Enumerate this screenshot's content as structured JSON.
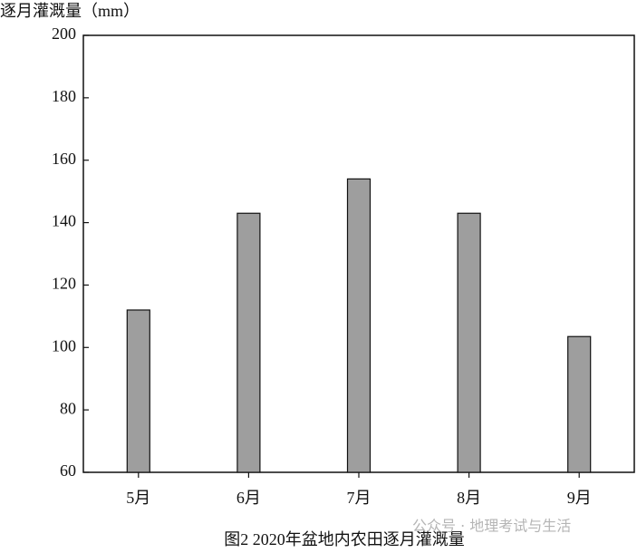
{
  "chart_data": {
    "type": "bar",
    "title": "逐月灌溉量（mm）",
    "caption": "图2 2020年盆地内农田逐月灌溉量",
    "watermark": "公众号 · 地理考试与生活",
    "categories": [
      "5月",
      "6月",
      "7月",
      "8月",
      "9月"
    ],
    "values": [
      112,
      143,
      154,
      143,
      103.5
    ],
    "color": "#9e9e9e",
    "ylim": [
      60,
      200
    ],
    "yticks": [
      60,
      80,
      100,
      120,
      140,
      160,
      180,
      200
    ],
    "grid": false
  }
}
